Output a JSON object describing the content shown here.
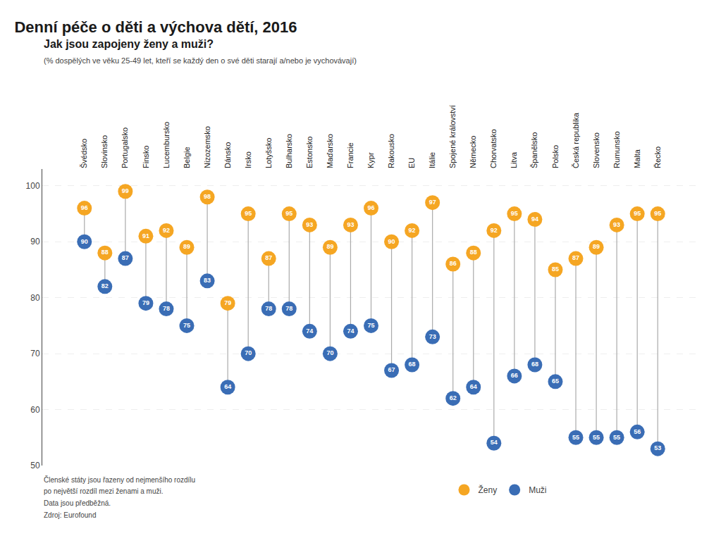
{
  "chart_data": {
    "type": "dumbbell",
    "title": "Denní péče o děti a výchova dětí, 2016",
    "subtitle": [
      "Jak jsou zapojeny ženy a muži?",
      "(% dospělých ve věku 25-49 let, kteří se každý den o své děti starají a/nebo je vychovávají)"
    ],
    "annotations": [
      "Členské státy jsou řazeny od nejmenšího rozdílu",
      "po největší rozdíl mezi ženami a muži.",
      "Data jsou předběžná.",
      "Zdroj: Eurofound"
    ],
    "categories": [
      "Švédsko",
      "Slovinsko",
      "Portugalsko",
      "Finsko",
      "Lucembursko",
      "Belgie",
      "Nizozemsko",
      "Dánsko",
      "Irsko",
      "Lotyšsko",
      "Bulharsko",
      "Estonsko",
      "Maďarsko",
      "Francie",
      "Kypr",
      "Rakousko",
      "EU",
      "Itálie",
      "Spojené království",
      "Německo",
      "Chorvatsko",
      "Litva",
      "Španělsko",
      "Polsko",
      "Česká republika",
      "Slovensko",
      "Rumunsko",
      "Malta",
      "Řecko"
    ],
    "series": [
      {
        "name": "Ženy",
        "color": "#F5A623",
        "values": [
          96,
          88,
          99,
          91,
          92,
          89,
          98,
          79,
          95,
          87,
          95,
          93,
          89,
          93,
          96,
          90,
          92,
          97,
          86,
          88,
          92,
          95,
          94,
          85,
          87,
          89,
          93,
          95,
          95
        ]
      },
      {
        "name": "Muži",
        "color": "#3A6DB5",
        "values": [
          90,
          82,
          87,
          79,
          78,
          75,
          83,
          64,
          70,
          78,
          78,
          74,
          70,
          74,
          75,
          67,
          68,
          73,
          62,
          64,
          54,
          66,
          68,
          65,
          55,
          55,
          55,
          56,
          53
        ]
      }
    ],
    "color": "#AAAAAA",
    "ylim": [
      50,
      103
    ],
    "yticks": [
      50,
      60,
      70,
      80,
      90,
      100
    ],
    "grid": true,
    "data_labels": true,
    "legend": "bottom"
  }
}
